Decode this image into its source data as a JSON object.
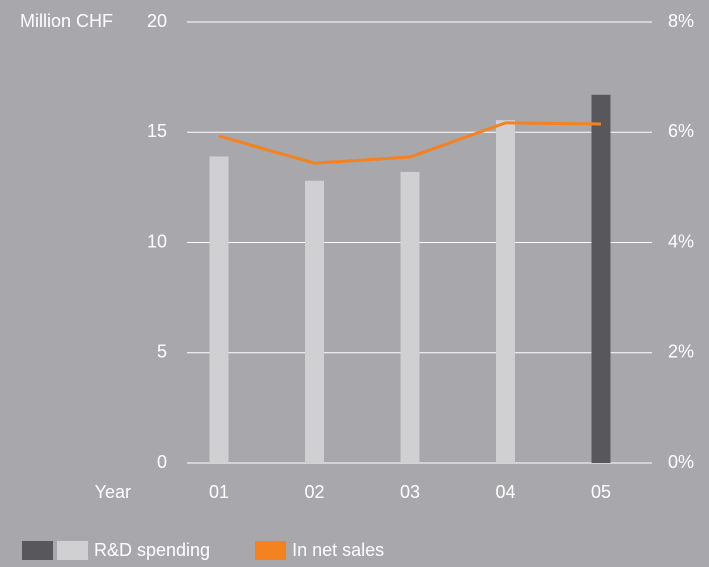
{
  "chart_data": {
    "type": "bar",
    "xlabel": "Year",
    "ylabel": "Million CHF",
    "categories": [
      "01",
      "02",
      "03",
      "04",
      "05"
    ],
    "series": [
      {
        "name": "R&D spending",
        "type": "bar",
        "colors": [
          "#d0d0d2",
          "#d0d0d2",
          "#d0d0d2",
          "#d0d0d2",
          "#58575b"
        ],
        "legend_colors": [
          "#58575b",
          "#d0d0d2"
        ],
        "values": [
          13.9,
          12.8,
          13.2,
          15.55,
          16.7
        ]
      },
      {
        "name": "In net sales",
        "type": "line",
        "color": "#f58220",
        "axis": "y2",
        "values": [
          5.93,
          5.44,
          5.55,
          6.17,
          6.15
        ]
      }
    ],
    "ylim": [
      0,
      20
    ],
    "yticks": [
      0,
      5,
      10,
      15,
      20
    ],
    "y2lim": [
      0,
      8
    ],
    "y2ticks": [
      {
        "value": 0,
        "label": "0%"
      },
      {
        "value": 2,
        "label": "2%"
      },
      {
        "value": 4,
        "label": "4%"
      },
      {
        "value": 6,
        "label": "6%"
      },
      {
        "value": 8,
        "label": "8%"
      }
    ],
    "grid": true
  }
}
